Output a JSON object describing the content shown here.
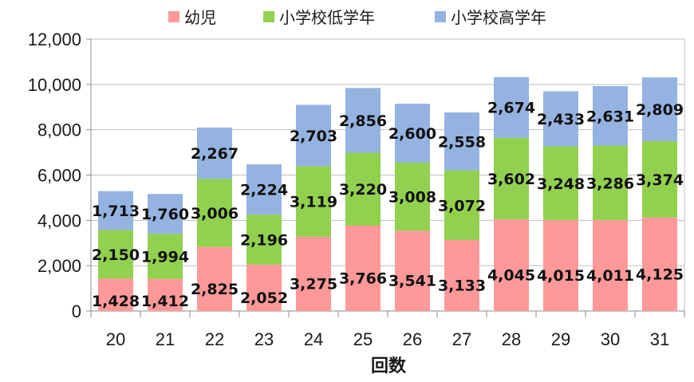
{
  "chart_data": {
    "type": "bar",
    "stacked": true,
    "title": "",
    "xlabel": "回数",
    "ylabel": "",
    "ylim": [
      0,
      12000
    ],
    "yticks": [
      "0",
      "2,000",
      "4,000",
      "6,000",
      "8,000",
      "10,000",
      "12,000"
    ],
    "ytick_values": [
      0,
      2000,
      4000,
      6000,
      8000,
      10000,
      12000
    ],
    "categories": [
      "20",
      "21",
      "22",
      "23",
      "24",
      "25",
      "26",
      "27",
      "28",
      "29",
      "30",
      "31"
    ],
    "series": [
      {
        "name": "幼児",
        "color": "#FF9999",
        "values": [
          1428,
          1412,
          2825,
          2052,
          3275,
          3766,
          3541,
          3133,
          4045,
          4015,
          4011,
          4125
        ],
        "labels": [
          "1,428",
          "1,412",
          "2,825",
          "2,052",
          "3,275",
          "3,766",
          "3,541",
          "3,133",
          "4,045",
          "4,015",
          "4,011",
          "4,125"
        ]
      },
      {
        "name": "小学校低学年",
        "color": "#92D050",
        "values": [
          2150,
          1994,
          3006,
          2196,
          3119,
          3220,
          3008,
          3072,
          3602,
          3248,
          3286,
          3374
        ],
        "labels": [
          "2,150",
          "1,994",
          "3,006",
          "2,196",
          "3,119",
          "3,220",
          "3,008",
          "3,072",
          "3,602",
          "3,248",
          "3,286",
          "3,374"
        ]
      },
      {
        "name": "小学校高学年",
        "color": "#95B3E0",
        "values": [
          1713,
          1760,
          2267,
          2224,
          2703,
          2856,
          2600,
          2558,
          2674,
          2433,
          2631,
          2809
        ],
        "labels": [
          "1,713",
          "1,760",
          "2,267",
          "2,224",
          "2,703",
          "2,856",
          "2,600",
          "2,558",
          "2,674",
          "2,433",
          "2,631",
          "2,809"
        ]
      }
    ],
    "grid": true,
    "legend": "top"
  }
}
